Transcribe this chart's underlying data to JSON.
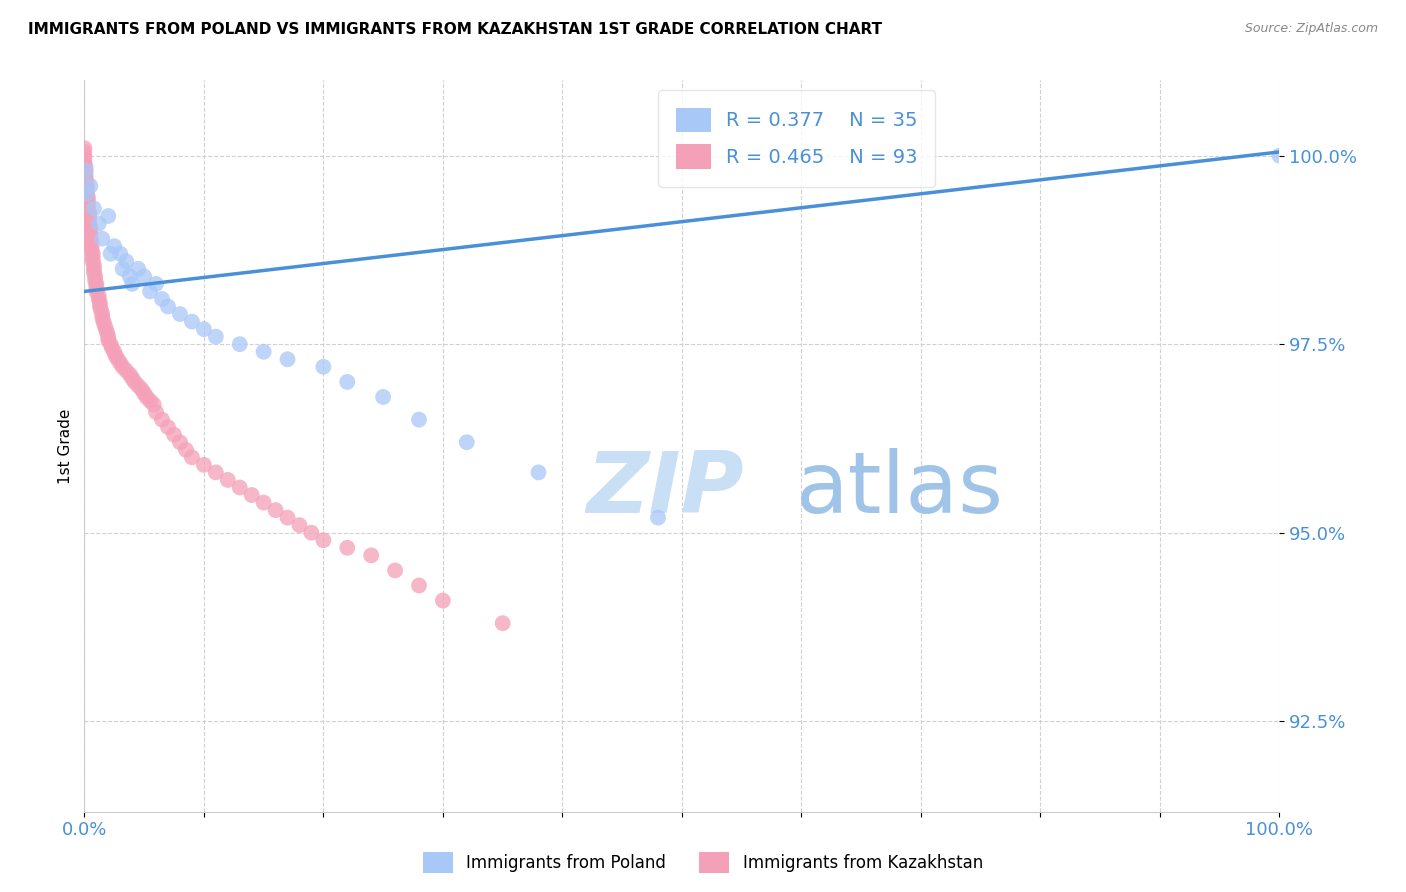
{
  "title": "IMMIGRANTS FROM POLAND VS IMMIGRANTS FROM KAZAKHSTAN 1ST GRADE CORRELATION CHART",
  "source": "Source: ZipAtlas.com",
  "ylabel": "1st Grade",
  "y_ticks": [
    92.5,
    95.0,
    97.5,
    100.0
  ],
  "y_tick_labels": [
    "92.5%",
    "95.0%",
    "97.5%",
    "100.0%"
  ],
  "xlim": [
    0.0,
    1.0
  ],
  "ylim": [
    91.3,
    101.0
  ],
  "legend_R1": "R = 0.377",
  "legend_N1": "N = 35",
  "legend_R2": "R = 0.465",
  "legend_N2": "N = 93",
  "color_poland": "#a8c8f8",
  "color_kazakhstan": "#f4a0b8",
  "color_line": "#4a90d9",
  "color_axis_labels": "#4a90d9",
  "color_watermark_zip": "#c8dff5",
  "color_watermark_atlas": "#a0c4e8",
  "background_color": "#ffffff",
  "grid_color": "#cccccc",
  "legend_label_poland": "Immigrants from Poland",
  "legend_label_kazakhstan": "Immigrants from Kazakhstan",
  "trendline_x0": 0.0,
  "trendline_x1": 1.0,
  "trendline_y0": 98.2,
  "trendline_y1": 100.05,
  "poland_x": [
    0.001,
    0.002,
    0.005,
    0.008,
    0.012,
    0.015,
    0.02,
    0.022,
    0.025,
    0.03,
    0.032,
    0.035,
    0.038,
    0.04,
    0.045,
    0.05,
    0.055,
    0.06,
    0.065,
    0.07,
    0.08,
    0.09,
    0.1,
    0.11,
    0.13,
    0.15,
    0.17,
    0.2,
    0.22,
    0.25,
    0.28,
    0.32,
    0.38,
    0.48,
    1.0
  ],
  "poland_y": [
    99.8,
    99.5,
    99.6,
    99.3,
    99.1,
    98.9,
    99.2,
    98.7,
    98.8,
    98.7,
    98.5,
    98.6,
    98.4,
    98.3,
    98.5,
    98.4,
    98.2,
    98.3,
    98.1,
    98.0,
    97.9,
    97.8,
    97.7,
    97.6,
    97.5,
    97.4,
    97.3,
    97.2,
    97.0,
    96.8,
    96.5,
    96.2,
    95.8,
    95.2,
    100.0
  ],
  "kazakhstan_x": [
    0.0,
    0.0,
    0.0,
    0.0,
    0.0,
    0.001,
    0.001,
    0.001,
    0.001,
    0.002,
    0.002,
    0.002,
    0.002,
    0.003,
    0.003,
    0.003,
    0.003,
    0.004,
    0.004,
    0.004,
    0.004,
    0.005,
    0.005,
    0.005,
    0.005,
    0.006,
    0.006,
    0.006,
    0.007,
    0.007,
    0.007,
    0.008,
    0.008,
    0.008,
    0.009,
    0.009,
    0.01,
    0.01,
    0.01,
    0.012,
    0.012,
    0.013,
    0.013,
    0.014,
    0.015,
    0.015,
    0.016,
    0.017,
    0.018,
    0.019,
    0.02,
    0.02,
    0.022,
    0.023,
    0.025,
    0.026,
    0.028,
    0.03,
    0.032,
    0.035,
    0.038,
    0.04,
    0.042,
    0.045,
    0.048,
    0.05,
    0.052,
    0.055,
    0.058,
    0.06,
    0.065,
    0.07,
    0.075,
    0.08,
    0.085,
    0.09,
    0.1,
    0.11,
    0.12,
    0.13,
    0.14,
    0.15,
    0.16,
    0.17,
    0.18,
    0.19,
    0.2,
    0.22,
    0.24,
    0.26,
    0.28,
    0.3,
    0.35
  ],
  "kazakhstan_y": [
    100.1,
    100.05,
    100.0,
    99.95,
    99.9,
    99.85,
    99.8,
    99.75,
    99.7,
    99.65,
    99.6,
    99.55,
    99.5,
    99.45,
    99.4,
    99.35,
    99.3,
    99.25,
    99.2,
    99.15,
    99.1,
    99.05,
    99.0,
    98.95,
    98.9,
    98.85,
    98.8,
    98.75,
    98.7,
    98.65,
    98.6,
    98.55,
    98.5,
    98.45,
    98.4,
    98.35,
    98.3,
    98.25,
    98.2,
    98.15,
    98.1,
    98.05,
    98.0,
    97.95,
    97.9,
    97.85,
    97.8,
    97.75,
    97.7,
    97.65,
    97.6,
    97.55,
    97.5,
    97.45,
    97.4,
    97.35,
    97.3,
    97.25,
    97.2,
    97.15,
    97.1,
    97.05,
    97.0,
    96.95,
    96.9,
    96.85,
    96.8,
    96.75,
    96.7,
    96.6,
    96.5,
    96.4,
    96.3,
    96.2,
    96.1,
    96.0,
    95.9,
    95.8,
    95.7,
    95.6,
    95.5,
    95.4,
    95.3,
    95.2,
    95.1,
    95.0,
    94.9,
    94.8,
    94.7,
    94.5,
    94.3,
    94.1,
    93.8
  ]
}
